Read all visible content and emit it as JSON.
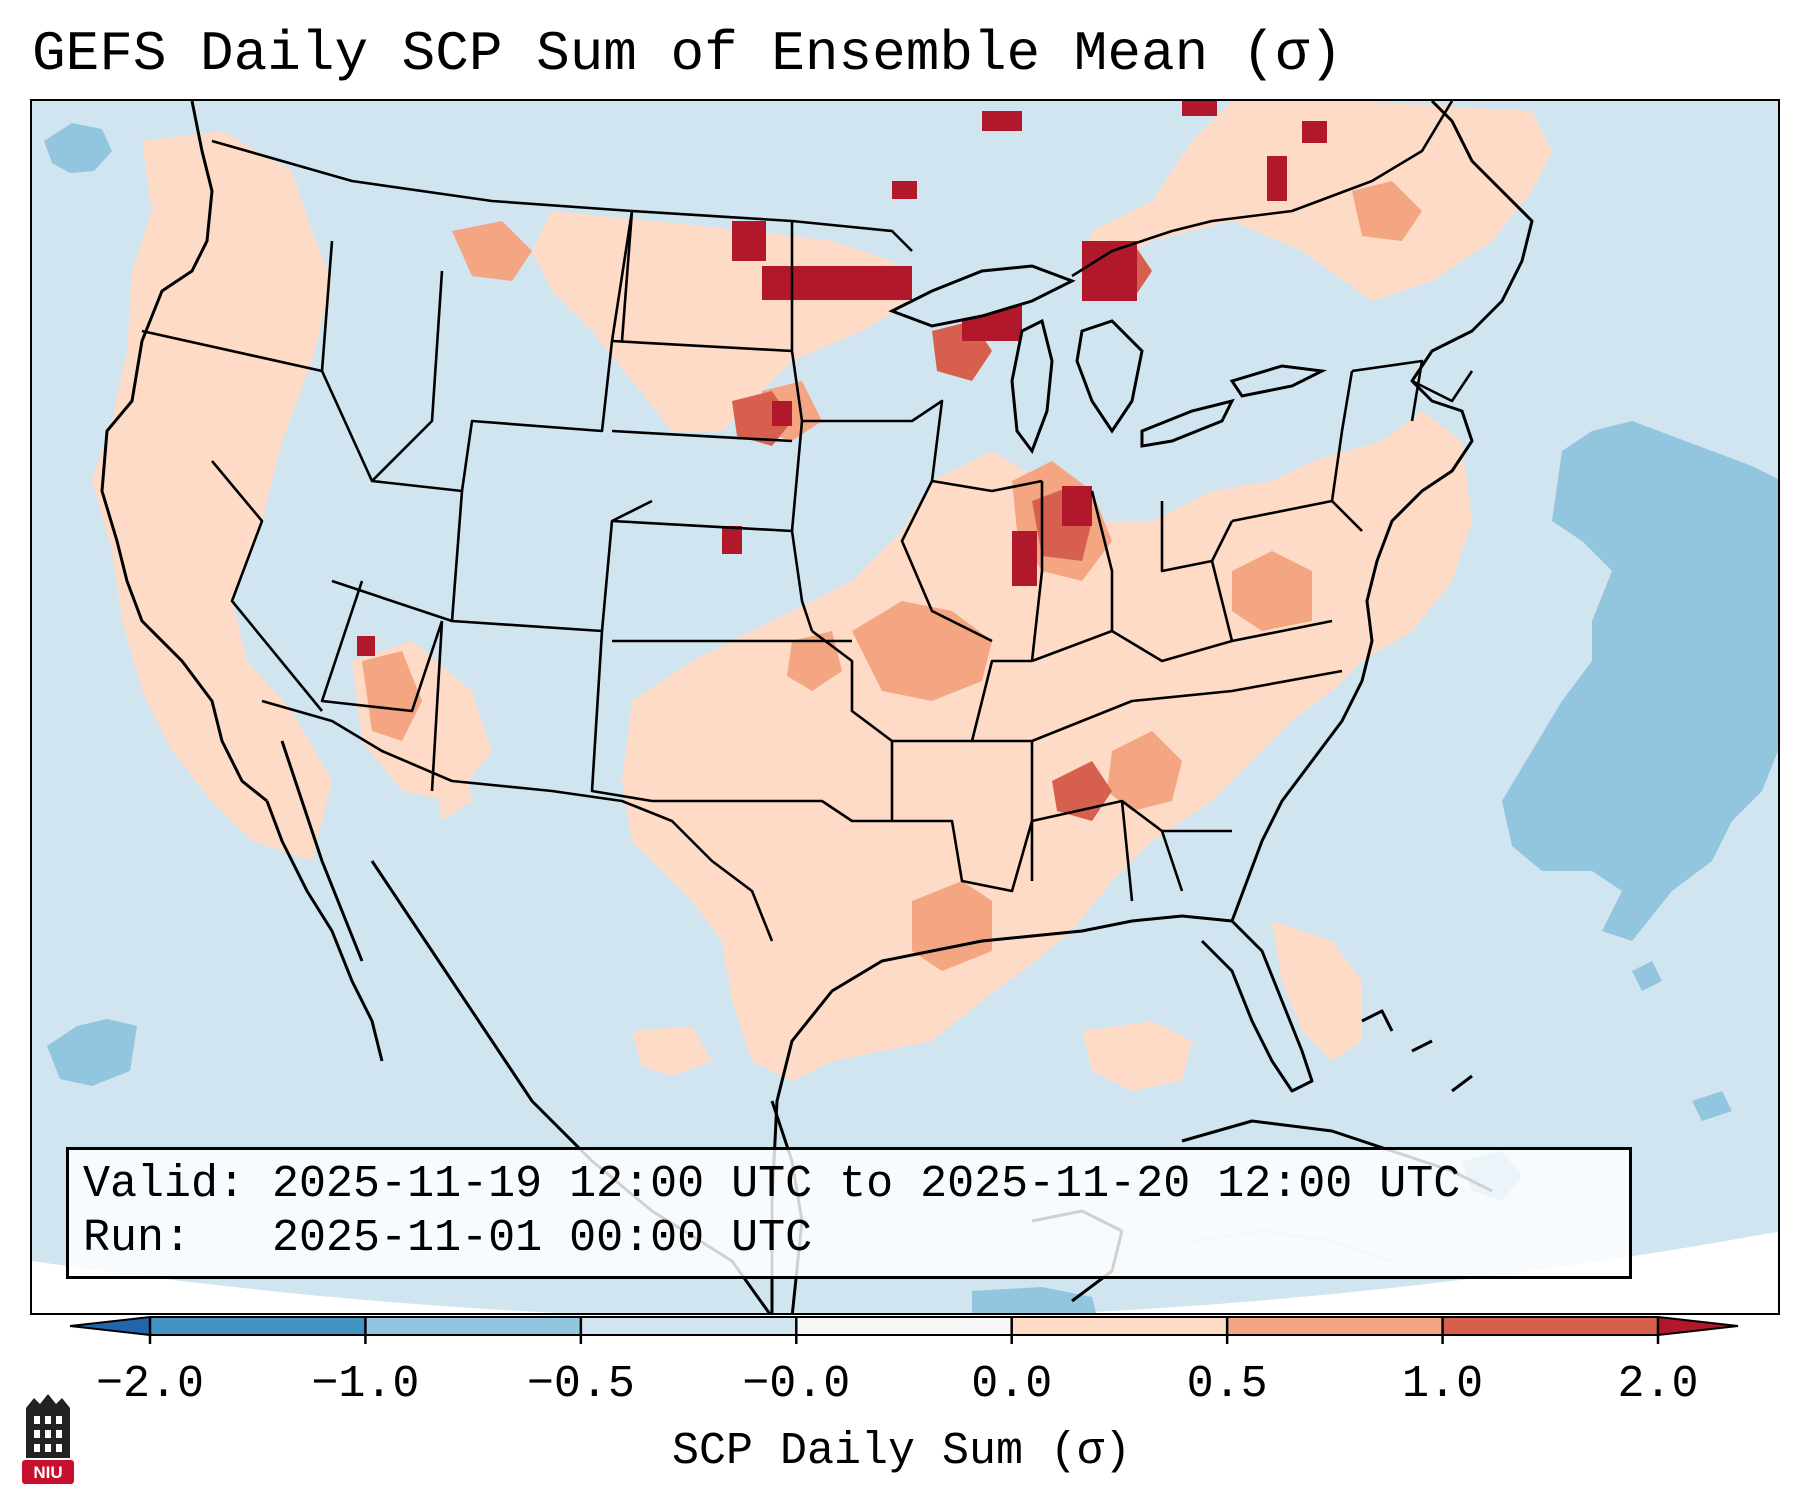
{
  "title": "GEFS Daily SCP Sum of Ensemble Mean (σ)",
  "info": {
    "valid_label": "Valid:",
    "valid_value": "2025-11-19 12:00 UTC to 2025-11-20 12:00 UTC",
    "run_label": "Run:",
    "run_value": "2025-11-01 00:00 UTC"
  },
  "colorbar": {
    "label": "SCP Daily Sum (σ)",
    "ticks": [
      "−2.0",
      "−1.0",
      "−0.5",
      "−0.0",
      "0.0",
      "0.5",
      "1.0",
      "2.0"
    ],
    "colors": [
      "#4393c3",
      "#92c5de",
      "#d1e5f0",
      "#f7f7f7",
      "#fddbc7",
      "#f4a582",
      "#d6604d"
    ],
    "under_color": "#2166ac",
    "over_color": "#b2182b"
  },
  "map": {
    "background_field": "#d1e5f0",
    "projection_edge": "#ffffff",
    "border_color": "#000000"
  },
  "logo": {
    "text": "NIU",
    "color": "#c8102e"
  },
  "icon": "university-tower-icon"
}
